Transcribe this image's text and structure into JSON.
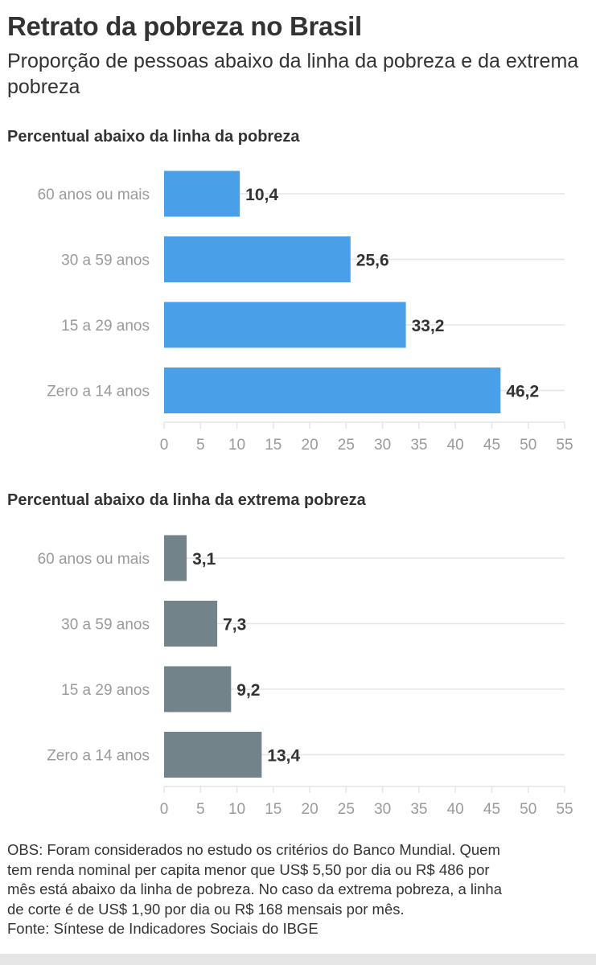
{
  "title": "Retrato da pobreza no Brasil",
  "subtitle": "Proporção de pessoas abaixo da linha da pobreza e da extrema pobreza",
  "chart_data": [
    {
      "type": "bar",
      "orientation": "horizontal",
      "title": "Percentual abaixo da linha da pobreza",
      "categories": [
        "60 anos ou mais",
        "30 a 59 anos",
        "15 a 29 anos",
        "Zero a 14 anos"
      ],
      "values": [
        10.4,
        25.6,
        33.2,
        46.2
      ],
      "value_labels": [
        "10,4",
        "25,6",
        "33,2",
        "46,2"
      ],
      "xlim": [
        0,
        55
      ],
      "xticks": [
        0,
        5,
        10,
        15,
        20,
        25,
        30,
        35,
        40,
        45,
        50,
        55
      ],
      "color": "#4aa0e8",
      "grid": true,
      "xlabel": "",
      "ylabel": ""
    },
    {
      "type": "bar",
      "orientation": "horizontal",
      "title": "Percentual abaixo da linha da extrema pobreza",
      "categories": [
        "60 anos ou mais",
        "30 a 59 anos",
        "15 a 29 anos",
        "Zero a 14 anos"
      ],
      "values": [
        3.1,
        7.3,
        9.2,
        13.4
      ],
      "value_labels": [
        "3,1",
        "7,3",
        "9,2",
        "13,4"
      ],
      "xlim": [
        0,
        55
      ],
      "xticks": [
        0,
        5,
        10,
        15,
        20,
        25,
        30,
        35,
        40,
        45,
        50,
        55
      ],
      "color": "#72838a",
      "grid": true,
      "xlabel": "",
      "ylabel": ""
    }
  ],
  "notes": [
    "OBS: Foram considerados no estudo os critérios do Banco Mundial. Quem",
    "tem renda nominal per capita menor que US$ 5,50 por dia ou R$ 486 por",
    "mês está abaixo da linha de pobreza. No caso da extrema pobreza, a linha",
    "de corte é de US$ 1,90 por dia ou R$ 168 mensais por mês.",
    "Fonte: Síntese de Indicadores Sociais do IBGE"
  ],
  "colors": {
    "text": "#333333",
    "axis_text": "#9a9a9a",
    "grid": "#e6e6e6"
  }
}
